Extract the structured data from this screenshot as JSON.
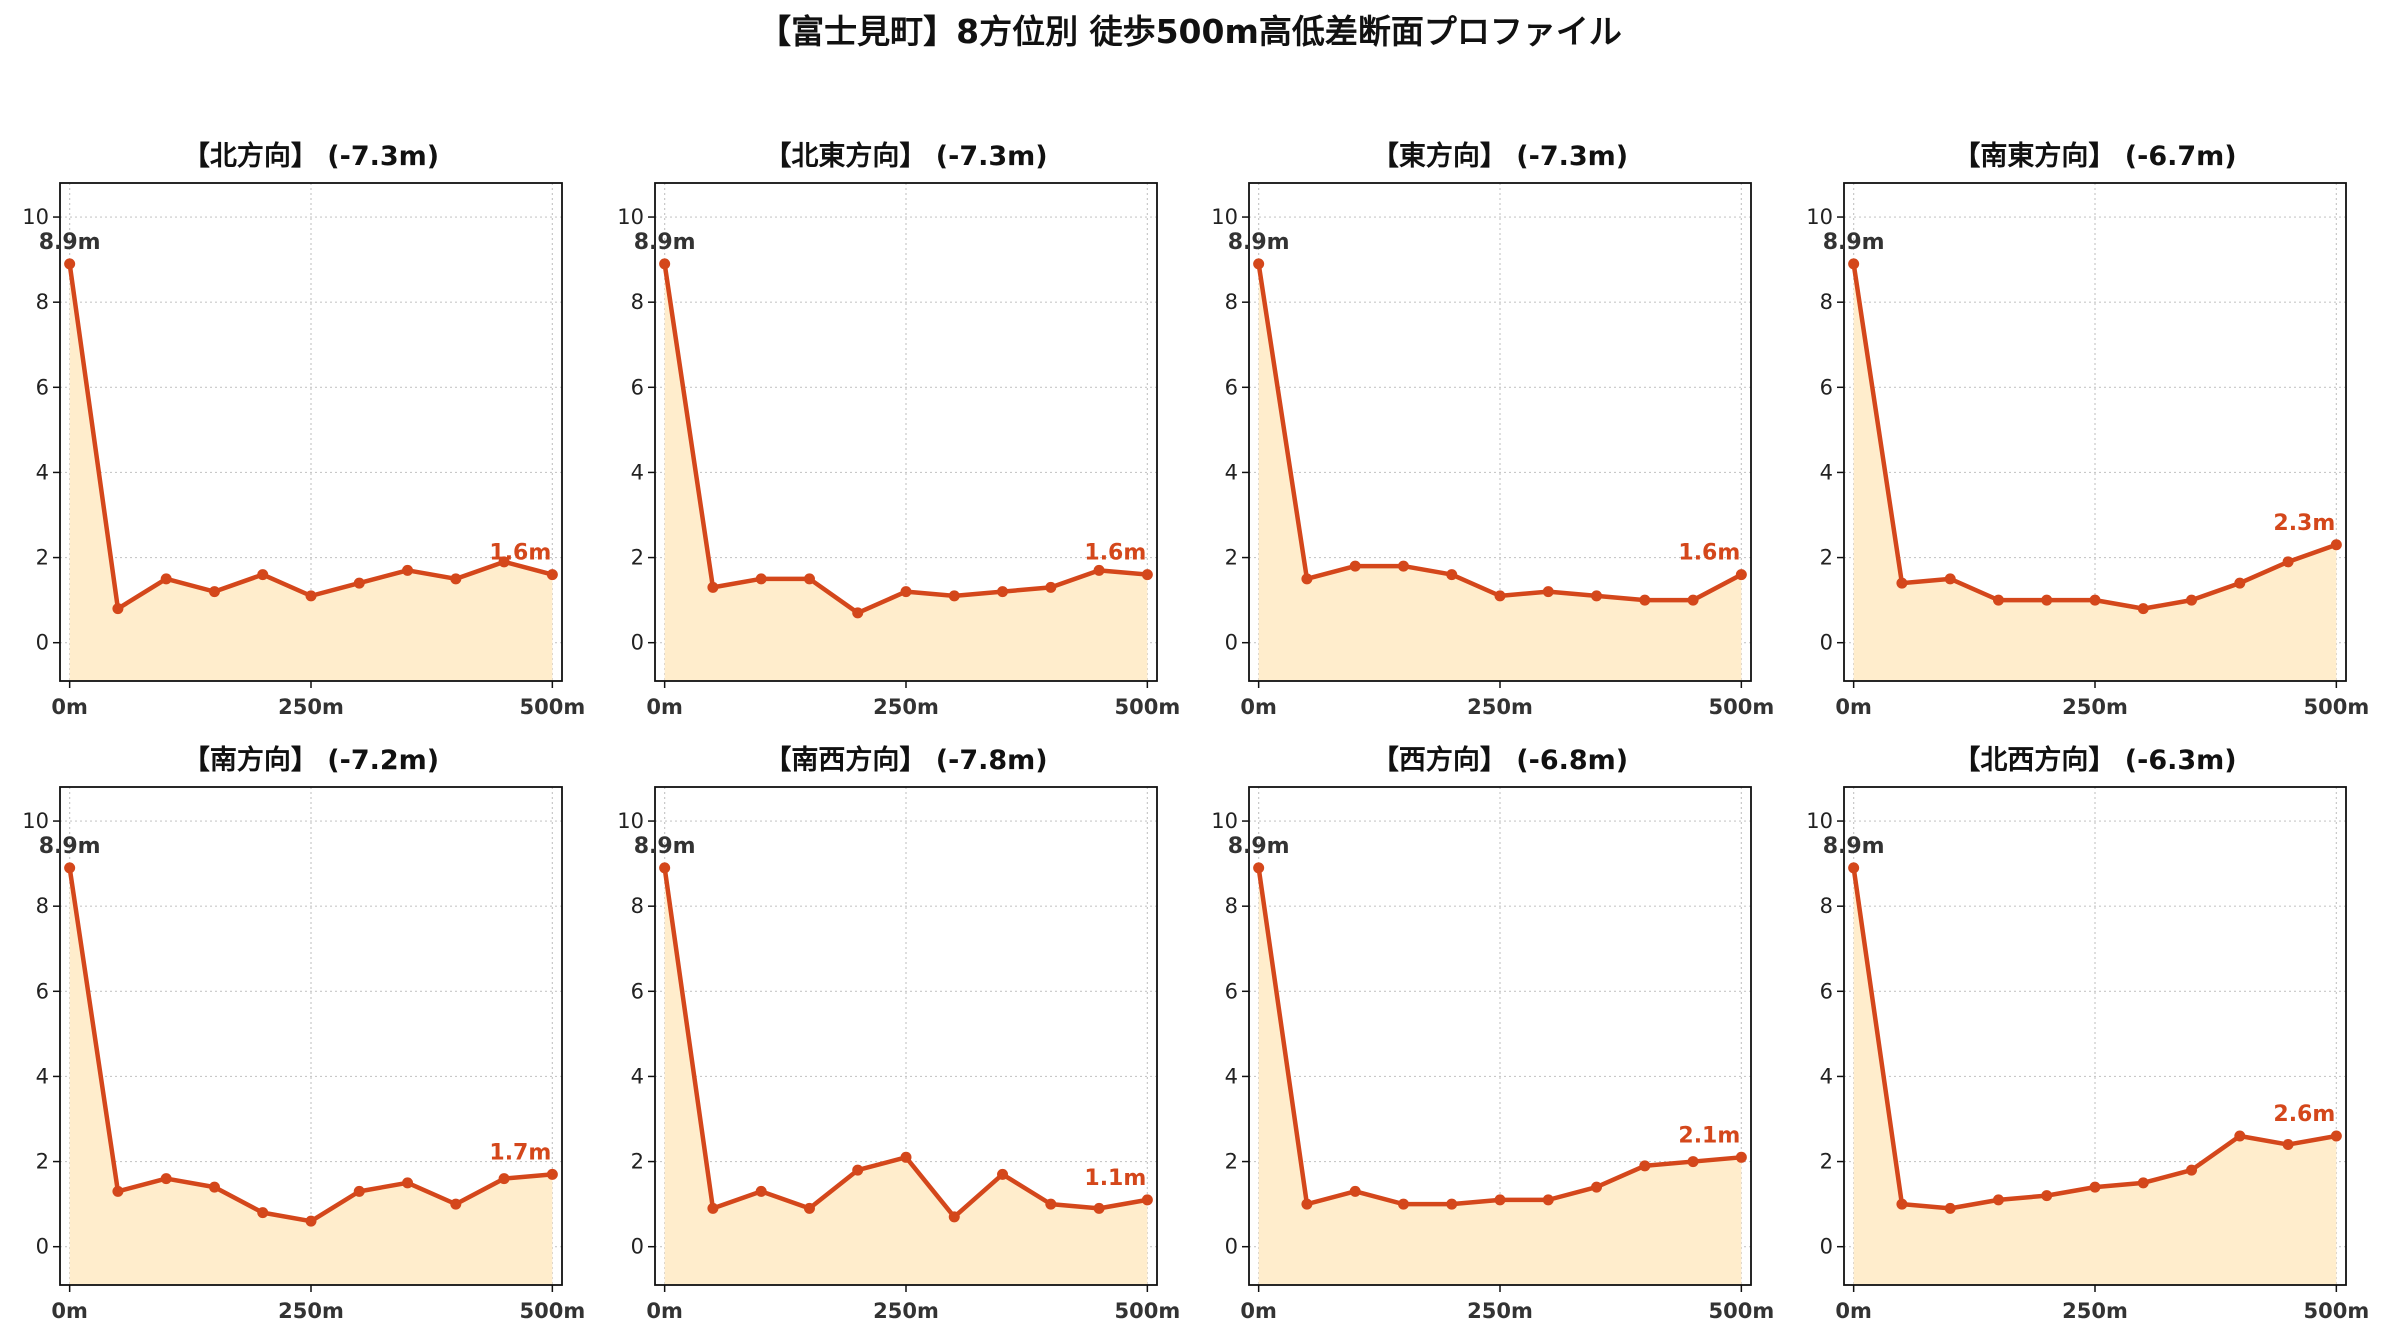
{
  "title": "【富士見町】8方位別 徒歩500m高低差断面プロファイル",
  "colors": {
    "line": "#d4471b",
    "fill": "#ffedcc",
    "start_label": "#333333",
    "end_label": "#d4471b",
    "grid": "#c8c8c8"
  },
  "chart_data": [
    {
      "type": "area",
      "title": "【北方向】 (-7.3m)",
      "x": [
        0,
        50,
        100,
        150,
        200,
        250,
        300,
        350,
        400,
        450,
        500
      ],
      "values": [
        8.9,
        0.8,
        1.5,
        1.2,
        1.6,
        1.1,
        1.4,
        1.7,
        1.5,
        1.9,
        1.6
      ],
      "start_label": "8.9m",
      "end_label": "1.6m",
      "xticks": [
        "0m",
        "250m",
        "500m"
      ],
      "yticks": [
        0,
        2,
        4,
        6,
        8,
        10
      ],
      "xlim": [
        -10,
        510
      ],
      "ylim": [
        -0.9,
        10.8
      ],
      "grid": true
    },
    {
      "type": "area",
      "title": "【北東方向】 (-7.3m)",
      "x": [
        0,
        50,
        100,
        150,
        200,
        250,
        300,
        350,
        400,
        450,
        500
      ],
      "values": [
        8.9,
        1.3,
        1.5,
        1.5,
        0.7,
        1.2,
        1.1,
        1.2,
        1.3,
        1.7,
        1.6
      ],
      "start_label": "8.9m",
      "end_label": "1.6m",
      "xticks": [
        "0m",
        "250m",
        "500m"
      ],
      "yticks": [
        0,
        2,
        4,
        6,
        8,
        10
      ],
      "xlim": [
        -10,
        510
      ],
      "ylim": [
        -0.9,
        10.8
      ],
      "grid": true
    },
    {
      "type": "area",
      "title": "【東方向】 (-7.3m)",
      "x": [
        0,
        50,
        100,
        150,
        200,
        250,
        300,
        350,
        400,
        450,
        500
      ],
      "values": [
        8.9,
        1.5,
        1.8,
        1.8,
        1.6,
        1.1,
        1.2,
        1.1,
        1.0,
        1.0,
        1.6
      ],
      "start_label": "8.9m",
      "end_label": "1.6m",
      "xticks": [
        "0m",
        "250m",
        "500m"
      ],
      "yticks": [
        0,
        2,
        4,
        6,
        8,
        10
      ],
      "xlim": [
        -10,
        510
      ],
      "ylim": [
        -0.9,
        10.8
      ],
      "grid": true
    },
    {
      "type": "area",
      "title": "【南東方向】 (-6.7m)",
      "x": [
        0,
        50,
        100,
        150,
        200,
        250,
        300,
        350,
        400,
        450,
        500
      ],
      "values": [
        8.9,
        1.4,
        1.5,
        1.0,
        1.0,
        1.0,
        0.8,
        1.0,
        1.4,
        1.9,
        2.3
      ],
      "start_label": "8.9m",
      "end_label": "2.3m",
      "xticks": [
        "0m",
        "250m",
        "500m"
      ],
      "yticks": [
        0,
        2,
        4,
        6,
        8,
        10
      ],
      "xlim": [
        -10,
        510
      ],
      "ylim": [
        -0.9,
        10.8
      ],
      "grid": true
    },
    {
      "type": "area",
      "title": "【南方向】 (-7.2m)",
      "x": [
        0,
        50,
        100,
        150,
        200,
        250,
        300,
        350,
        400,
        450,
        500
      ],
      "values": [
        8.9,
        1.3,
        1.6,
        1.4,
        0.8,
        0.6,
        1.3,
        1.5,
        1.0,
        1.6,
        1.7
      ],
      "start_label": "8.9m",
      "end_label": "1.7m",
      "xticks": [
        "0m",
        "250m",
        "500m"
      ],
      "yticks": [
        0,
        2,
        4,
        6,
        8,
        10
      ],
      "xlim": [
        -10,
        510
      ],
      "ylim": [
        -0.9,
        10.8
      ],
      "grid": true
    },
    {
      "type": "area",
      "title": "【南西方向】 (-7.8m)",
      "x": [
        0,
        50,
        100,
        150,
        200,
        250,
        300,
        350,
        400,
        450,
        500
      ],
      "values": [
        8.9,
        0.9,
        1.3,
        0.9,
        1.8,
        2.1,
        0.7,
        1.7,
        1.0,
        0.9,
        1.1
      ],
      "start_label": "8.9m",
      "end_label": "1.1m",
      "xticks": [
        "0m",
        "250m",
        "500m"
      ],
      "yticks": [
        0,
        2,
        4,
        6,
        8,
        10
      ],
      "xlim": [
        -10,
        510
      ],
      "ylim": [
        -0.9,
        10.8
      ],
      "grid": true
    },
    {
      "type": "area",
      "title": "【西方向】 (-6.8m)",
      "x": [
        0,
        50,
        100,
        150,
        200,
        250,
        300,
        350,
        400,
        450,
        500
      ],
      "values": [
        8.9,
        1.0,
        1.3,
        1.0,
        1.0,
        1.1,
        1.1,
        1.4,
        1.9,
        2.0,
        2.1
      ],
      "start_label": "8.9m",
      "end_label": "2.1m",
      "xticks": [
        "0m",
        "250m",
        "500m"
      ],
      "yticks": [
        0,
        2,
        4,
        6,
        8,
        10
      ],
      "xlim": [
        -10,
        510
      ],
      "ylim": [
        -0.9,
        10.8
      ],
      "grid": true
    },
    {
      "type": "area",
      "title": "【北西方向】 (-6.3m)",
      "x": [
        0,
        50,
        100,
        150,
        200,
        250,
        300,
        350,
        400,
        450,
        500
      ],
      "values": [
        8.9,
        1.0,
        0.9,
        1.1,
        1.2,
        1.4,
        1.5,
        1.8,
        2.6,
        2.4,
        2.6
      ],
      "start_label": "8.9m",
      "end_label": "2.6m",
      "xticks": [
        "0m",
        "250m",
        "500m"
      ],
      "yticks": [
        0,
        2,
        4,
        6,
        8,
        10
      ],
      "xlim": [
        -10,
        510
      ],
      "ylim": [
        -0.9,
        10.8
      ],
      "grid": true
    }
  ]
}
